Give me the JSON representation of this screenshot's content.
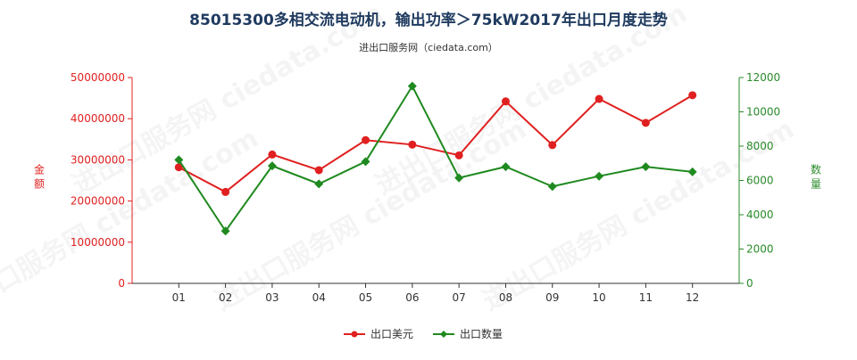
{
  "chart_data": {
    "type": "line",
    "title": "85015300多相交流电动机，输出功率＞75kW2017年出口月度走势",
    "subtitle": "进出口服务网（ciedata.com）",
    "watermark": "进出口服务网 ciedata.com",
    "categories": [
      "01",
      "02",
      "03",
      "04",
      "05",
      "06",
      "07",
      "08",
      "09",
      "10",
      "11",
      "12"
    ],
    "y_left": {
      "label": "金额",
      "ticks": [
        "0",
        "10000000",
        "20000000",
        "30000000",
        "40000000",
        "50000000"
      ],
      "ylim": [
        0,
        50000000
      ]
    },
    "y_right": {
      "label": "数量",
      "ticks": [
        "0",
        "2000",
        "4000",
        "6000",
        "8000",
        "10000",
        "12000"
      ],
      "ylim": [
        0,
        12000
      ]
    },
    "series": [
      {
        "name": "出口美元",
        "axis": "left",
        "color": "#e02020",
        "values": [
          28200000,
          22200000,
          31300000,
          27500000,
          34800000,
          33700000,
          31100000,
          44200000,
          33600000,
          44800000,
          39000000,
          45700000
        ]
      },
      {
        "name": "出口数量",
        "axis": "right",
        "color": "#1f8a1f",
        "values": [
          7200,
          3050,
          6850,
          5800,
          7100,
          11500,
          6150,
          6800,
          5650,
          6250,
          6800,
          6500
        ]
      }
    ],
    "grid": false,
    "legend_position": "bottom"
  }
}
